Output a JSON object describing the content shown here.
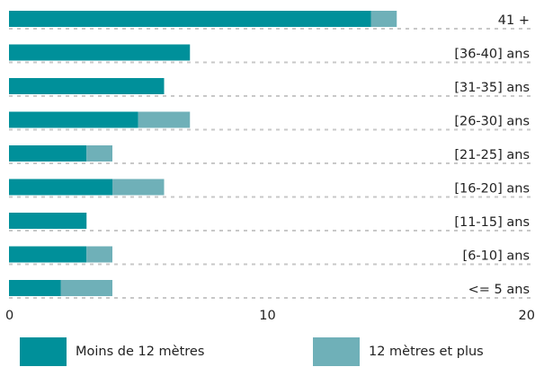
{
  "chart_data": {
    "type": "bar",
    "orientation": "horizontal",
    "stacked": true,
    "categories": [
      "41 +",
      "[36-40] ans",
      "[31-35] ans",
      "[26-30] ans",
      "[21-25] ans",
      "[16-20] ans",
      "[11-15] ans",
      "[6-10] ans",
      "<= 5 ans"
    ],
    "series": [
      {
        "name": "Moins de 12 mètres",
        "color": "#00909a",
        "values": [
          14,
          7,
          6,
          5,
          3,
          4,
          3,
          3,
          2
        ]
      },
      {
        "name": "12 mètres et plus",
        "color": "#6fb0b8",
        "values": [
          1,
          0,
          0,
          2,
          1,
          2,
          0,
          1,
          2
        ]
      }
    ],
    "xlim": [
      0,
      20
    ],
    "xticks": [
      0,
      10,
      20
    ],
    "xtick_labels": [
      "0",
      "10",
      "20"
    ],
    "title": "",
    "xlabel": "",
    "ylabel": "",
    "legend_position": "bottom",
    "gridlines": "dotted-horizontal"
  }
}
